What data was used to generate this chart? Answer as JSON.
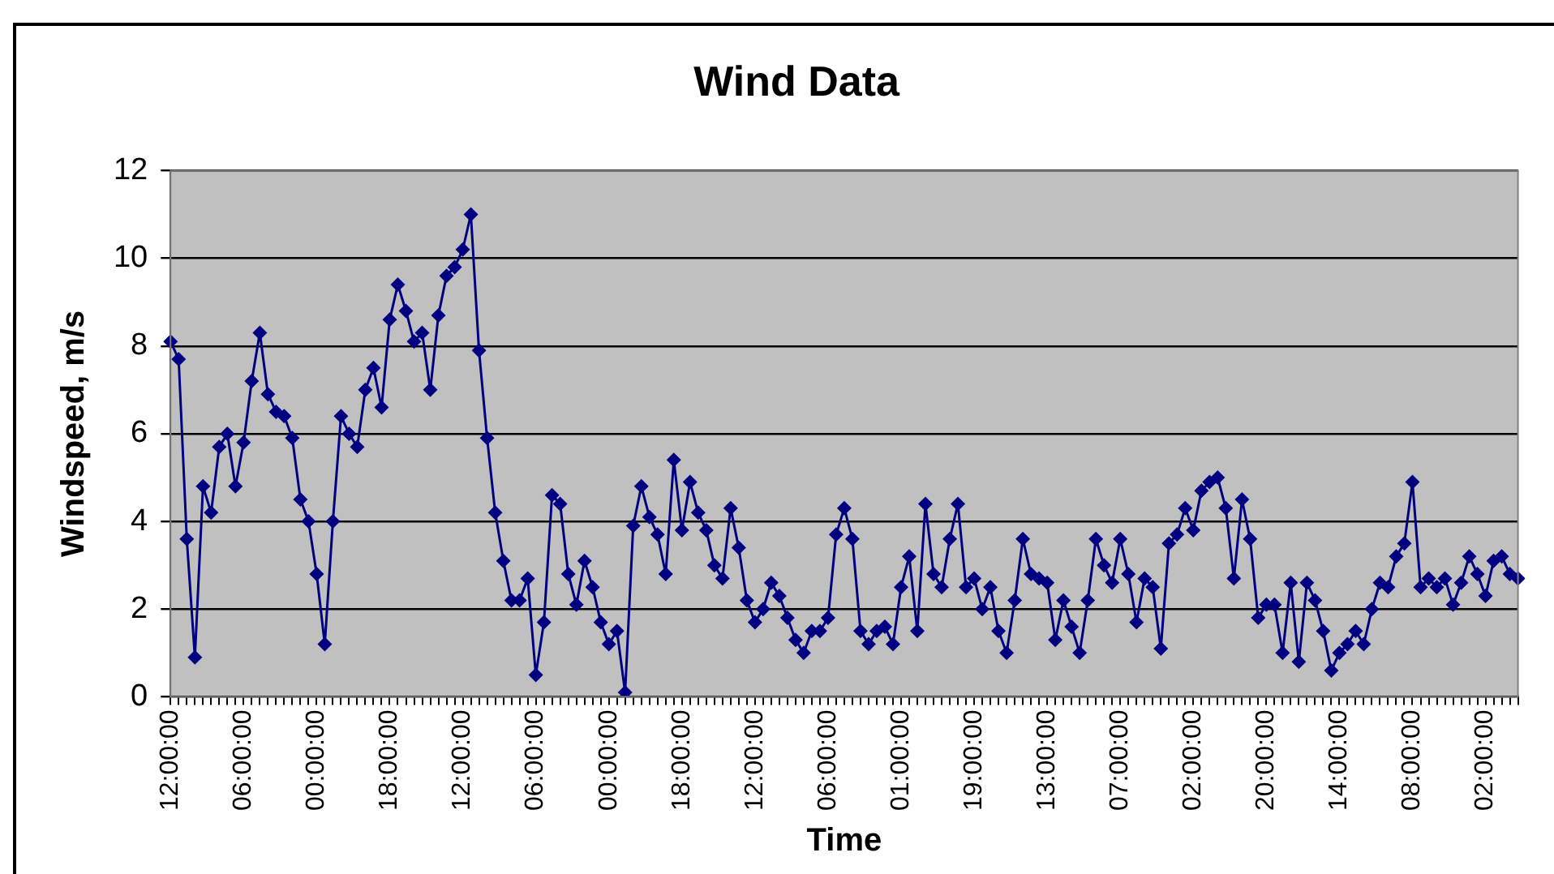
{
  "chart_data": {
    "type": "line",
    "title": "Wind Data",
    "xlabel": "Time",
    "ylabel": "Windspeed, m/s",
    "categories": [
      "12:00:00",
      null,
      null,
      null,
      null,
      null,
      null,
      null,
      null,
      "06:00:00",
      null,
      null,
      null,
      null,
      null,
      null,
      null,
      null,
      "00:00:00",
      null,
      null,
      null,
      null,
      null,
      null,
      null,
      null,
      "18:00:00",
      null,
      null,
      null,
      null,
      null,
      null,
      null,
      null,
      "12:00:00",
      null,
      null,
      null,
      null,
      null,
      null,
      null,
      null,
      "06:00:00",
      null,
      null,
      null,
      null,
      null,
      null,
      null,
      null,
      "00:00:00",
      null,
      null,
      null,
      null,
      null,
      null,
      null,
      null,
      "18:00:00",
      null,
      null,
      null,
      null,
      null,
      null,
      null,
      null,
      "12:00:00",
      null,
      null,
      null,
      null,
      null,
      null,
      null,
      null,
      "06:00:00",
      null,
      null,
      null,
      null,
      null,
      null,
      null,
      null,
      "01:00:00",
      null,
      null,
      null,
      null,
      null,
      null,
      null,
      null,
      "19:00:00",
      null,
      null,
      null,
      null,
      null,
      null,
      null,
      null,
      "13:00:00",
      null,
      null,
      null,
      null,
      null,
      null,
      null,
      null,
      "07:00:00",
      null,
      null,
      null,
      null,
      null,
      null,
      null,
      null,
      "02:00:00",
      null,
      null,
      null,
      null,
      null,
      null,
      null,
      null,
      "20:00:00",
      null,
      null,
      null,
      null,
      null,
      null,
      null,
      null,
      "14:00:00",
      null,
      null,
      null,
      null,
      null,
      null,
      null,
      null,
      "08:00:00",
      null,
      null,
      null,
      null,
      null,
      null,
      null,
      null,
      "02:00:00",
      null,
      null,
      null,
      null
    ],
    "series": [
      {
        "color": "#000080",
        "values": [
          8.1,
          7.7,
          3.6,
          0.9,
          4.8,
          4.2,
          5.7,
          6.0,
          4.8,
          5.8,
          7.2,
          8.3,
          6.9,
          6.5,
          6.4,
          5.9,
          4.5,
          4.0,
          2.8,
          1.2,
          4.0,
          6.4,
          6.0,
          5.7,
          7.0,
          7.5,
          6.6,
          8.6,
          9.4,
          8.8,
          8.1,
          8.3,
          7.0,
          8.7,
          9.6,
          9.8,
          10.2,
          11.0,
          7.9,
          5.9,
          4.2,
          3.1,
          2.2,
          2.2,
          2.7,
          0.5,
          1.7,
          4.6,
          4.4,
          2.8,
          2.1,
          3.1,
          2.5,
          1.7,
          1.2,
          1.5,
          0.1,
          3.9,
          4.8,
          4.1,
          3.7,
          2.8,
          5.4,
          3.8,
          4.9,
          4.2,
          3.8,
          3.0,
          2.7,
          4.3,
          3.4,
          2.2,
          1.7,
          2.0,
          2.6,
          2.3,
          1.8,
          1.3,
          1.0,
          1.5,
          1.5,
          1.8,
          3.7,
          4.3,
          3.6,
          1.5,
          1.2,
          1.5,
          1.6,
          1.2,
          2.5,
          3.2,
          1.5,
          4.4,
          2.8,
          2.5,
          3.6,
          4.4,
          2.5,
          2.7,
          2.0,
          2.5,
          1.5,
          1.0,
          2.2,
          3.6,
          2.8,
          2.7,
          2.6,
          1.3,
          2.2,
          1.6,
          1.0,
          2.2,
          3.6,
          3.0,
          2.6,
          3.6,
          2.8,
          1.7,
          2.7,
          2.5,
          1.1,
          3.5,
          3.7,
          4.3,
          3.8,
          4.7,
          4.9,
          5.0,
          4.3,
          2.7,
          4.5,
          3.6,
          1.8,
          2.1,
          2.1,
          1.0,
          2.6,
          0.8,
          2.6,
          2.2,
          1.5,
          0.6,
          1.0,
          1.2,
          1.5,
          1.2,
          2.0,
          2.6,
          2.5,
          3.2,
          3.5,
          4.9,
          2.5,
          2.7,
          2.5,
          2.7,
          2.1,
          2.6,
          3.2,
          2.8,
          2.3,
          3.1,
          3.2,
          2.8,
          2.7
        ]
      }
    ],
    "ylim": [
      0,
      12
    ],
    "yticks": [
      0,
      2,
      4,
      6,
      8,
      10,
      12
    ],
    "grid": "y",
    "marker": "diamond",
    "line_style": "solid",
    "legend": false
  }
}
